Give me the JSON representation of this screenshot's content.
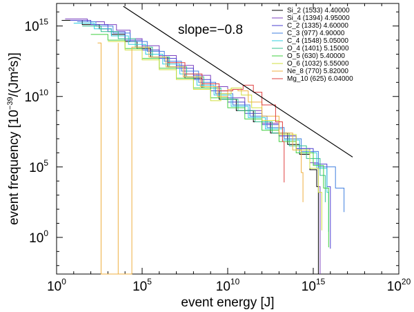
{
  "chart_data": {
    "type": "line",
    "title": "",
    "xlabel": "event energy [J]",
    "ylabel": {
      "prefix": "event frequency [10",
      "exp": "−39",
      "suffix": "/(Jm²s)]"
    },
    "xlog": true,
    "ylog": true,
    "xlim_exp": [
      0,
      20
    ],
    "ylim_exp": [
      -2.6,
      16.6
    ],
    "x_tick_exps": [
      0,
      5,
      10,
      15,
      20
    ],
    "y_tick_exps": [
      0,
      5,
      10,
      15
    ],
    "tick_base": "10",
    "grid": false,
    "legend_position": "top-right",
    "annotation": {
      "text": "slope=−0.8",
      "slope": -0.8,
      "line_log_points": [
        [
          3.9,
          16.4
        ],
        [
          17.3,
          5.7
        ]
      ]
    },
    "series": [
      {
        "name": "Si_2 (1533) 4.40000",
        "color": "#000000",
        "points": [
          [
            0.3,
            15.4
          ],
          [
            1.5,
            15.1
          ],
          [
            2.5,
            14.8
          ],
          [
            3.2,
            14.4
          ],
          [
            4.0,
            13.9
          ],
          [
            4.7,
            13.4
          ],
          [
            5.5,
            12.8
          ],
          [
            6.5,
            12.1
          ],
          [
            7.5,
            11.3
          ],
          [
            8.5,
            10.6
          ],
          [
            9.5,
            9.8
          ],
          [
            10.5,
            9.0
          ],
          [
            11.5,
            8.2
          ],
          [
            12.5,
            7.4
          ],
          [
            13.5,
            6.6
          ],
          [
            14.2,
            5.9
          ],
          [
            14.8,
            4.8
          ],
          [
            15.2,
            3.6
          ],
          [
            15.3,
            -2.6
          ]
        ]
      },
      {
        "name": "Si_4 (1394) 4.95000",
        "color": "#7b3fbf",
        "points": [
          [
            0.5,
            15.5
          ],
          [
            1.8,
            15.3
          ],
          [
            2.8,
            15.1
          ],
          [
            3.5,
            14.7
          ],
          [
            4.3,
            14.1
          ],
          [
            5.0,
            13.6
          ],
          [
            6.0,
            12.9
          ],
          [
            7.0,
            12.2
          ],
          [
            8.0,
            11.5
          ],
          [
            9.0,
            10.7
          ],
          [
            10.0,
            9.9
          ],
          [
            11.0,
            9.0
          ],
          [
            12.0,
            8.1
          ],
          [
            13.0,
            7.2
          ],
          [
            14.0,
            6.3
          ],
          [
            14.8,
            5.3
          ],
          [
            15.3,
            3.6
          ],
          [
            15.4,
            -2.6
          ]
        ]
      },
      {
        "name": "C_2 (1335) 4.60000",
        "color": "#4a3fcf",
        "points": [
          [
            0.8,
            15.4
          ],
          [
            2.0,
            15.1
          ],
          [
            3.0,
            14.6
          ],
          [
            4.0,
            14.0
          ],
          [
            5.0,
            13.3
          ],
          [
            6.0,
            12.7
          ],
          [
            7.0,
            12.0
          ],
          [
            8.0,
            11.2
          ],
          [
            9.0,
            10.4
          ],
          [
            10.0,
            9.6
          ],
          [
            11.0,
            8.8
          ],
          [
            12.0,
            8.0
          ],
          [
            13.0,
            7.2
          ],
          [
            14.0,
            6.3
          ],
          [
            15.0,
            5.2
          ],
          [
            15.8,
            3.6
          ],
          [
            16.0,
            -0.8
          ]
        ]
      },
      {
        "name": "C_3 (977) 4.90000",
        "color": "#3f7fdf",
        "points": [
          [
            1.2,
            15.3
          ],
          [
            2.3,
            15.0
          ],
          [
            3.3,
            14.5
          ],
          [
            4.3,
            13.9
          ],
          [
            5.3,
            13.2
          ],
          [
            6.3,
            12.5
          ],
          [
            7.3,
            11.8
          ],
          [
            8.3,
            11.0
          ],
          [
            9.3,
            10.2
          ],
          [
            10.3,
            9.4
          ],
          [
            11.3,
            8.6
          ],
          [
            12.3,
            7.8
          ],
          [
            13.3,
            7.0
          ],
          [
            14.3,
            6.1
          ],
          [
            15.3,
            5.0
          ],
          [
            16.3,
            3.5
          ],
          [
            16.8,
            1.8
          ]
        ]
      },
      {
        "name": "C_4 (1548) 5.05000",
        "color": "#2fcfdf",
        "points": [
          [
            1.0,
            15.2
          ],
          [
            2.2,
            14.8
          ],
          [
            3.2,
            14.3
          ],
          [
            4.2,
            13.7
          ],
          [
            5.2,
            13.0
          ],
          [
            6.2,
            12.3
          ],
          [
            7.2,
            11.6
          ],
          [
            8.2,
            10.8
          ],
          [
            9.2,
            10.1
          ],
          [
            10.2,
            9.3
          ],
          [
            11.2,
            8.5
          ],
          [
            12.2,
            7.7
          ],
          [
            13.2,
            6.9
          ],
          [
            14.2,
            6.0
          ],
          [
            15.2,
            4.9
          ],
          [
            15.8,
            3.2
          ],
          [
            15.9,
            0.4
          ]
        ]
      },
      {
        "name": "O_4 (1401) 5.15000",
        "color": "#2fbf8f",
        "points": [
          [
            1.5,
            15.0
          ],
          [
            2.6,
            14.6
          ],
          [
            3.6,
            14.1
          ],
          [
            4.6,
            13.5
          ],
          [
            5.6,
            12.8
          ],
          [
            6.6,
            12.1
          ],
          [
            7.6,
            11.4
          ],
          [
            8.6,
            10.6
          ],
          [
            9.6,
            9.8
          ],
          [
            10.6,
            9.0
          ],
          [
            11.6,
            8.2
          ],
          [
            12.6,
            7.4
          ],
          [
            13.6,
            6.5
          ],
          [
            14.6,
            5.6
          ],
          [
            15.4,
            4.4
          ],
          [
            15.7,
            2.5
          ]
        ]
      },
      {
        "name": "O_5 (630) 5.40000",
        "color": "#3fcf3f",
        "points": [
          [
            2.0,
            14.4
          ],
          [
            3.0,
            14.0
          ],
          [
            4.0,
            13.4
          ],
          [
            5.0,
            12.7
          ],
          [
            6.0,
            12.0
          ],
          [
            7.0,
            11.3
          ],
          [
            8.0,
            10.6
          ],
          [
            9.0,
            9.9
          ],
          [
            10.0,
            9.2
          ],
          [
            11.0,
            8.4
          ],
          [
            12.0,
            7.6
          ],
          [
            13.0,
            6.8
          ],
          [
            14.0,
            6.0
          ],
          [
            15.0,
            5.1
          ],
          [
            15.6,
            3.5
          ],
          [
            15.9,
            -0.7
          ]
        ]
      },
      {
        "name": "O_6 (1032) 5.55000",
        "color": "#cfdf3f",
        "points": [
          [
            3.0,
            13.9
          ],
          [
            4.0,
            13.3
          ],
          [
            5.0,
            12.6
          ],
          [
            6.0,
            11.9
          ],
          [
            7.0,
            11.2
          ],
          [
            8.0,
            10.5
          ],
          [
            9.0,
            9.7
          ],
          [
            9.6,
            10.2
          ],
          [
            10.2,
            10.6
          ],
          [
            10.8,
            10.1
          ],
          [
            11.4,
            9.2
          ],
          [
            12.0,
            8.3
          ],
          [
            13.0,
            7.3
          ],
          [
            14.0,
            6.2
          ],
          [
            14.8,
            4.9
          ],
          [
            15.3,
            3.2
          ],
          [
            15.5,
            0.5
          ]
        ]
      },
      {
        "name": "Ne_8 (770) 5.82000",
        "color": "#efaf3f",
        "points": [
          [
            2.4,
            13.8
          ],
          [
            2.6,
            13.8
          ],
          [
            2.6,
            -2.6
          ],
          [
            3.6,
            13.8
          ],
          [
            3.6,
            -2.6
          ],
          [
            4.4,
            13.5
          ],
          [
            5.4,
            12.8
          ],
          [
            6.4,
            12.1
          ],
          [
            7.4,
            11.4
          ],
          [
            8.4,
            10.7
          ],
          [
            9.4,
            10.0
          ],
          [
            10.0,
            10.5
          ],
          [
            10.6,
            10.4
          ],
          [
            11.2,
            9.6
          ],
          [
            12.0,
            8.6
          ],
          [
            13.0,
            7.4
          ],
          [
            13.8,
            6.2
          ],
          [
            14.3,
            4.6
          ],
          [
            14.4,
            2.5
          ]
        ]
      },
      {
        "name": "Mg_10 (625) 6.04000",
        "color": "#df3f3f",
        "points": [
          [
            6.5,
            12.4
          ],
          [
            7.5,
            11.6
          ],
          [
            8.5,
            10.9
          ],
          [
            9.5,
            10.4
          ],
          [
            10.3,
            10.5
          ],
          [
            10.9,
            10.8
          ],
          [
            11.5,
            10.3
          ],
          [
            12.0,
            9.4
          ],
          [
            12.8,
            8.2
          ],
          [
            13.2,
            6.8
          ],
          [
            13.3,
            3.9
          ]
        ]
      }
    ]
  }
}
